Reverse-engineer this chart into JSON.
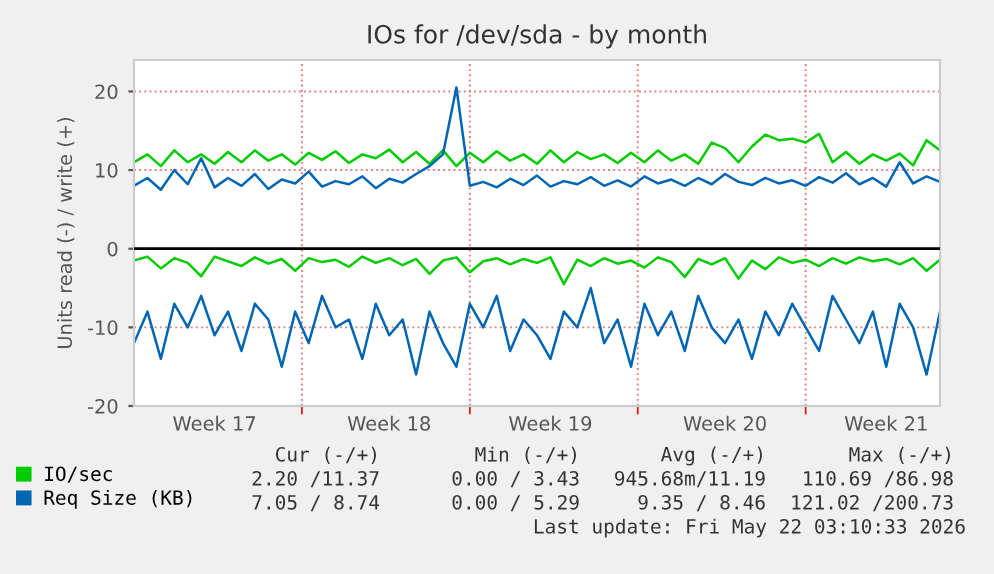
{
  "chart_data": {
    "type": "line",
    "title": "IOs for /dev/sda - by month",
    "ylabel": "Units read (-) / write (+)",
    "categories": [
      null,
      null,
      null,
      null,
      null,
      null,
      "Week 17",
      null,
      null,
      null,
      null,
      null,
      null,
      null,
      null,
      null,
      null,
      null,
      null,
      "Week 18",
      null,
      null,
      null,
      null,
      null,
      null,
      null,
      null,
      null,
      null,
      null,
      "Week 19",
      null,
      null,
      null,
      null,
      null,
      null,
      null,
      null,
      null,
      null,
      null,
      null,
      "Week 20",
      null,
      null,
      null,
      null,
      null,
      null,
      null,
      null,
      null,
      null,
      null,
      "Week 21",
      null,
      null,
      null,
      null
    ],
    "series": [
      {
        "name": "IO/sec",
        "color": "#00cc00",
        "values": [
          11,
          12,
          10.5,
          12.5,
          11,
          12,
          10.8,
          12.3,
          11,
          12.5,
          11.2,
          12,
          10.7,
          12.2,
          11.3,
          12.4,
          10.9,
          12,
          11.5,
          12.6,
          11,
          12.3,
          10.8,
          12.5,
          10.5,
          12.2,
          11,
          12.4,
          11.2,
          12,
          10.8,
          12.5,
          11,
          12.3,
          11.4,
          12,
          10.9,
          12.2,
          11,
          12.5,
          11.2,
          12,
          10.8,
          13.5,
          12.8,
          11,
          13,
          14.5,
          13.8,
          14,
          13.5,
          14.6,
          11,
          12.3,
          10.8,
          12,
          11.2,
          12.1,
          10.6,
          13.8,
          12.5
        ]
      },
      {
        "color": "#00cc00",
        "values": [
          -1.5,
          -1,
          -2.5,
          -1.2,
          -1.8,
          -3.5,
          -1,
          -1.6,
          -2.2,
          -1.1,
          -1.9,
          -1.3,
          -2.8,
          -1.2,
          -1.7,
          -1.4,
          -2.3,
          -1,
          -1.8,
          -1.2,
          -2.1,
          -1.3,
          -3.2,
          -1.5,
          -1.1,
          -3,
          -1.6,
          -1.2,
          -2,
          -1.3,
          -1.8,
          -1.1,
          -4.5,
          -1.4,
          -2.2,
          -1.2,
          -1.9,
          -1.5,
          -2.4,
          -1.1,
          -1.7,
          -3.6,
          -1.3,
          -2,
          -1.2,
          -3.8,
          -1.5,
          -2.6,
          -1.1,
          -1.8,
          -1.4,
          -2.2,
          -1.2,
          -1.9,
          -1.1,
          -1.6,
          -1.3,
          -2,
          -1.2,
          -2.8,
          -1.4
        ]
      },
      {
        "name": "Req Size (KB)",
        "color": "#0066b3",
        "values": [
          8,
          9,
          7.5,
          10,
          8.2,
          11.5,
          7.8,
          9,
          8,
          9.5,
          7.6,
          8.8,
          8.3,
          9.8,
          7.9,
          8.6,
          8.2,
          9.2,
          7.7,
          8.9,
          8.4,
          9.5,
          10.5,
          12,
          20.5,
          8,
          8.5,
          7.8,
          8.9,
          8.1,
          9.3,
          7.9,
          8.6,
          8.2,
          9.1,
          8,
          8.7,
          7.9,
          9.2,
          8.3,
          8.8,
          8,
          9,
          8.2,
          9.5,
          8.5,
          8.1,
          9,
          8.3,
          8.7,
          8,
          9.1,
          8.4,
          9.6,
          8.2,
          9,
          7.9,
          11,
          8.3,
          9.2,
          8.5
        ]
      },
      {
        "color": "#0066b3",
        "values": [
          -12,
          -8,
          -14,
          -7,
          -10,
          -6,
          -11,
          -8,
          -13,
          -7,
          -9,
          -15,
          -8,
          -12,
          -6,
          -10,
          -9,
          -14,
          -7,
          -11,
          -9,
          -16,
          -8,
          -12,
          -15,
          -7,
          -10,
          -6,
          -13,
          -9,
          -11,
          -14,
          -8,
          -10,
          -5,
          -12,
          -9,
          -15,
          -7,
          -11,
          -8,
          -13,
          -6,
          -10,
          -12,
          -9,
          -14,
          -8,
          -11,
          -7,
          -10,
          -13,
          -6,
          -9,
          -12,
          -8,
          -15,
          -7,
          -10,
          -16,
          -8
        ]
      }
    ],
    "ylim": [
      -20,
      24
    ],
    "yticks": [
      -20,
      -10,
      0,
      10,
      20
    ],
    "ref_lines": [
      {
        "axis": "y",
        "value": 0,
        "color": "#000000"
      }
    ],
    "grid": true,
    "legend": "bottom left",
    "marker": "none",
    "line_style": "solid",
    "annotations": [
      "Cur (-/+)",
      "Min (-/+)",
      "Avg (-/+)",
      "Max (-/+)",
      "2.20 /11.37",
      "0.00 / 3.43",
      "945.68m/11.19",
      "110.69 /86.98",
      "7.05 / 8.74",
      "0.00 / 5.29",
      "9.35 / 8.46",
      "121.02 /200.73",
      "Last update: Fri May 22 03:10:33 2026"
    ]
  }
}
